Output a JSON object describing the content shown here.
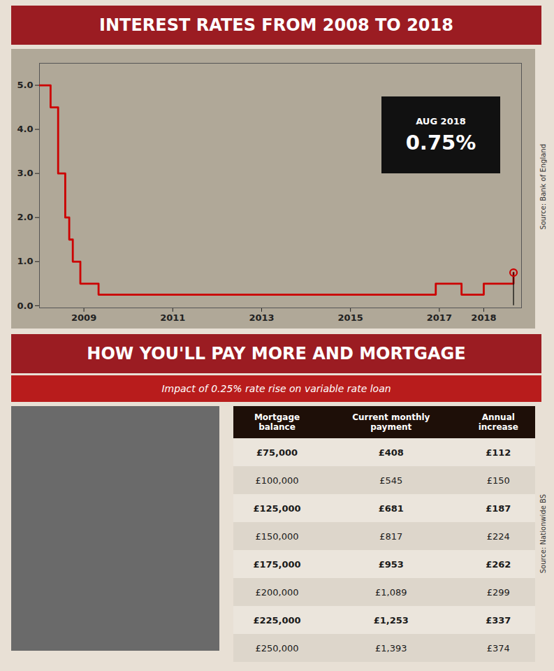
{
  "chart_data": [
    {
      "type": "line",
      "title": "INTEREST RATES FROM 2008 TO 2018",
      "x": [
        2008.0,
        2008.08,
        2008.25,
        2008.42,
        2008.58,
        2008.67,
        2008.75,
        2008.92,
        2009.08,
        2009.33,
        2016.75,
        2016.92,
        2017.0,
        2017.5,
        2017.92,
        2018.0,
        2018.58,
        2018.67
      ],
      "values": [
        5.0,
        5.0,
        4.5,
        3.0,
        2.0,
        1.5,
        1.0,
        0.5,
        0.5,
        0.25,
        0.25,
        0.5,
        0.5,
        0.25,
        0.25,
        0.5,
        0.5,
        0.75
      ],
      "color": "#cc0000",
      "line_style": "step",
      "xlim": [
        2008.0,
        2018.85
      ],
      "ylim": [
        -0.05,
        5.5
      ],
      "xticks": [
        2009,
        2011,
        2013,
        2015,
        2017,
        2018
      ],
      "yticks": [
        0,
        1,
        2,
        3,
        4,
        5
      ],
      "grid": false,
      "annotation": {
        "x": 2018.67,
        "y": 0.75,
        "label": "AUG 2018",
        "text": "0.75%"
      },
      "source": "Source: Bank of England"
    },
    {
      "type": "table",
      "title": "HOW YOU'LL PAY MORE AND MORTGAGE",
      "subtitle": "Impact of 0.25% rate rise on variable rate loan",
      "columns": [
        "Mortgage\nbalance",
        "Current monthly\npayment",
        "Annual\nincrease"
      ],
      "rows": [
        [
          "£75,000",
          "£408",
          "£112"
        ],
        [
          "£100,000",
          "£545",
          "£150"
        ],
        [
          "£125,000",
          "£681",
          "£187"
        ],
        [
          "£150,000",
          "£817",
          "£224"
        ],
        [
          "£175,000",
          "£953",
          "£262"
        ],
        [
          "£200,000",
          "£1,089",
          "£299"
        ],
        [
          "£225,000",
          "£1,253",
          "£337"
        ],
        [
          "£250,000",
          "£1,393",
          "£374"
        ]
      ],
      "source": "Source: Nationwide BS"
    }
  ]
}
